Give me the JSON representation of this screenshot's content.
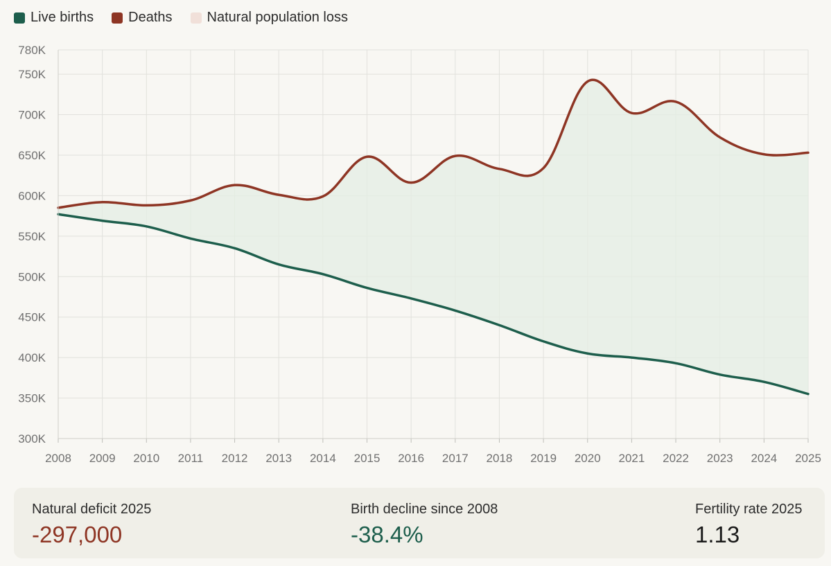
{
  "legend": [
    {
      "label": "Live births",
      "color": "#1d5e4c"
    },
    {
      "label": "Deaths",
      "color": "#8e3524"
    },
    {
      "label": "Natural population loss",
      "color": "#f1e0d9"
    }
  ],
  "chart_data": {
    "type": "line",
    "x": [
      "2008",
      "2009",
      "2010",
      "2011",
      "2012",
      "2013",
      "2014",
      "2015",
      "2016",
      "2017",
      "2018",
      "2019",
      "2020",
      "2021",
      "2022",
      "2023",
      "2024",
      "2025"
    ],
    "series": [
      {
        "name": "Live births",
        "color": "#1d5e4c",
        "values": [
          577000,
          569000,
          562000,
          547000,
          535000,
          515000,
          503000,
          486000,
          473000,
          458000,
          440000,
          420000,
          405000,
          400000,
          393000,
          379000,
          370000,
          355000
        ]
      },
      {
        "name": "Deaths",
        "color": "#8e3524",
        "values": [
          585000,
          592000,
          588000,
          594000,
          613000,
          601000,
          599000,
          648000,
          616000,
          649000,
          633000,
          634000,
          741000,
          702000,
          716000,
          672000,
          651000,
          653000
        ]
      }
    ],
    "fill": {
      "name": "Natural population loss",
      "color": "#e4ede4"
    },
    "y_ticks": [
      "300K",
      "350K",
      "400K",
      "450K",
      "500K",
      "550K",
      "600K",
      "650K",
      "700K",
      "750K",
      "780K"
    ],
    "y_tick_values": [
      300000,
      350000,
      400000,
      450000,
      500000,
      550000,
      600000,
      650000,
      700000,
      750000,
      780000
    ],
    "ylim": [
      300000,
      780000
    ],
    "grid": true
  },
  "stats": [
    {
      "label": "Natural deficit 2025",
      "value": "-297,000",
      "color": "#8e3524"
    },
    {
      "label": "Birth decline since 2008",
      "value": "-38.4%",
      "color": "#1d5e4c"
    },
    {
      "label": "Fertility rate 2025",
      "value": "1.13",
      "color": "#1a1a1a"
    }
  ]
}
